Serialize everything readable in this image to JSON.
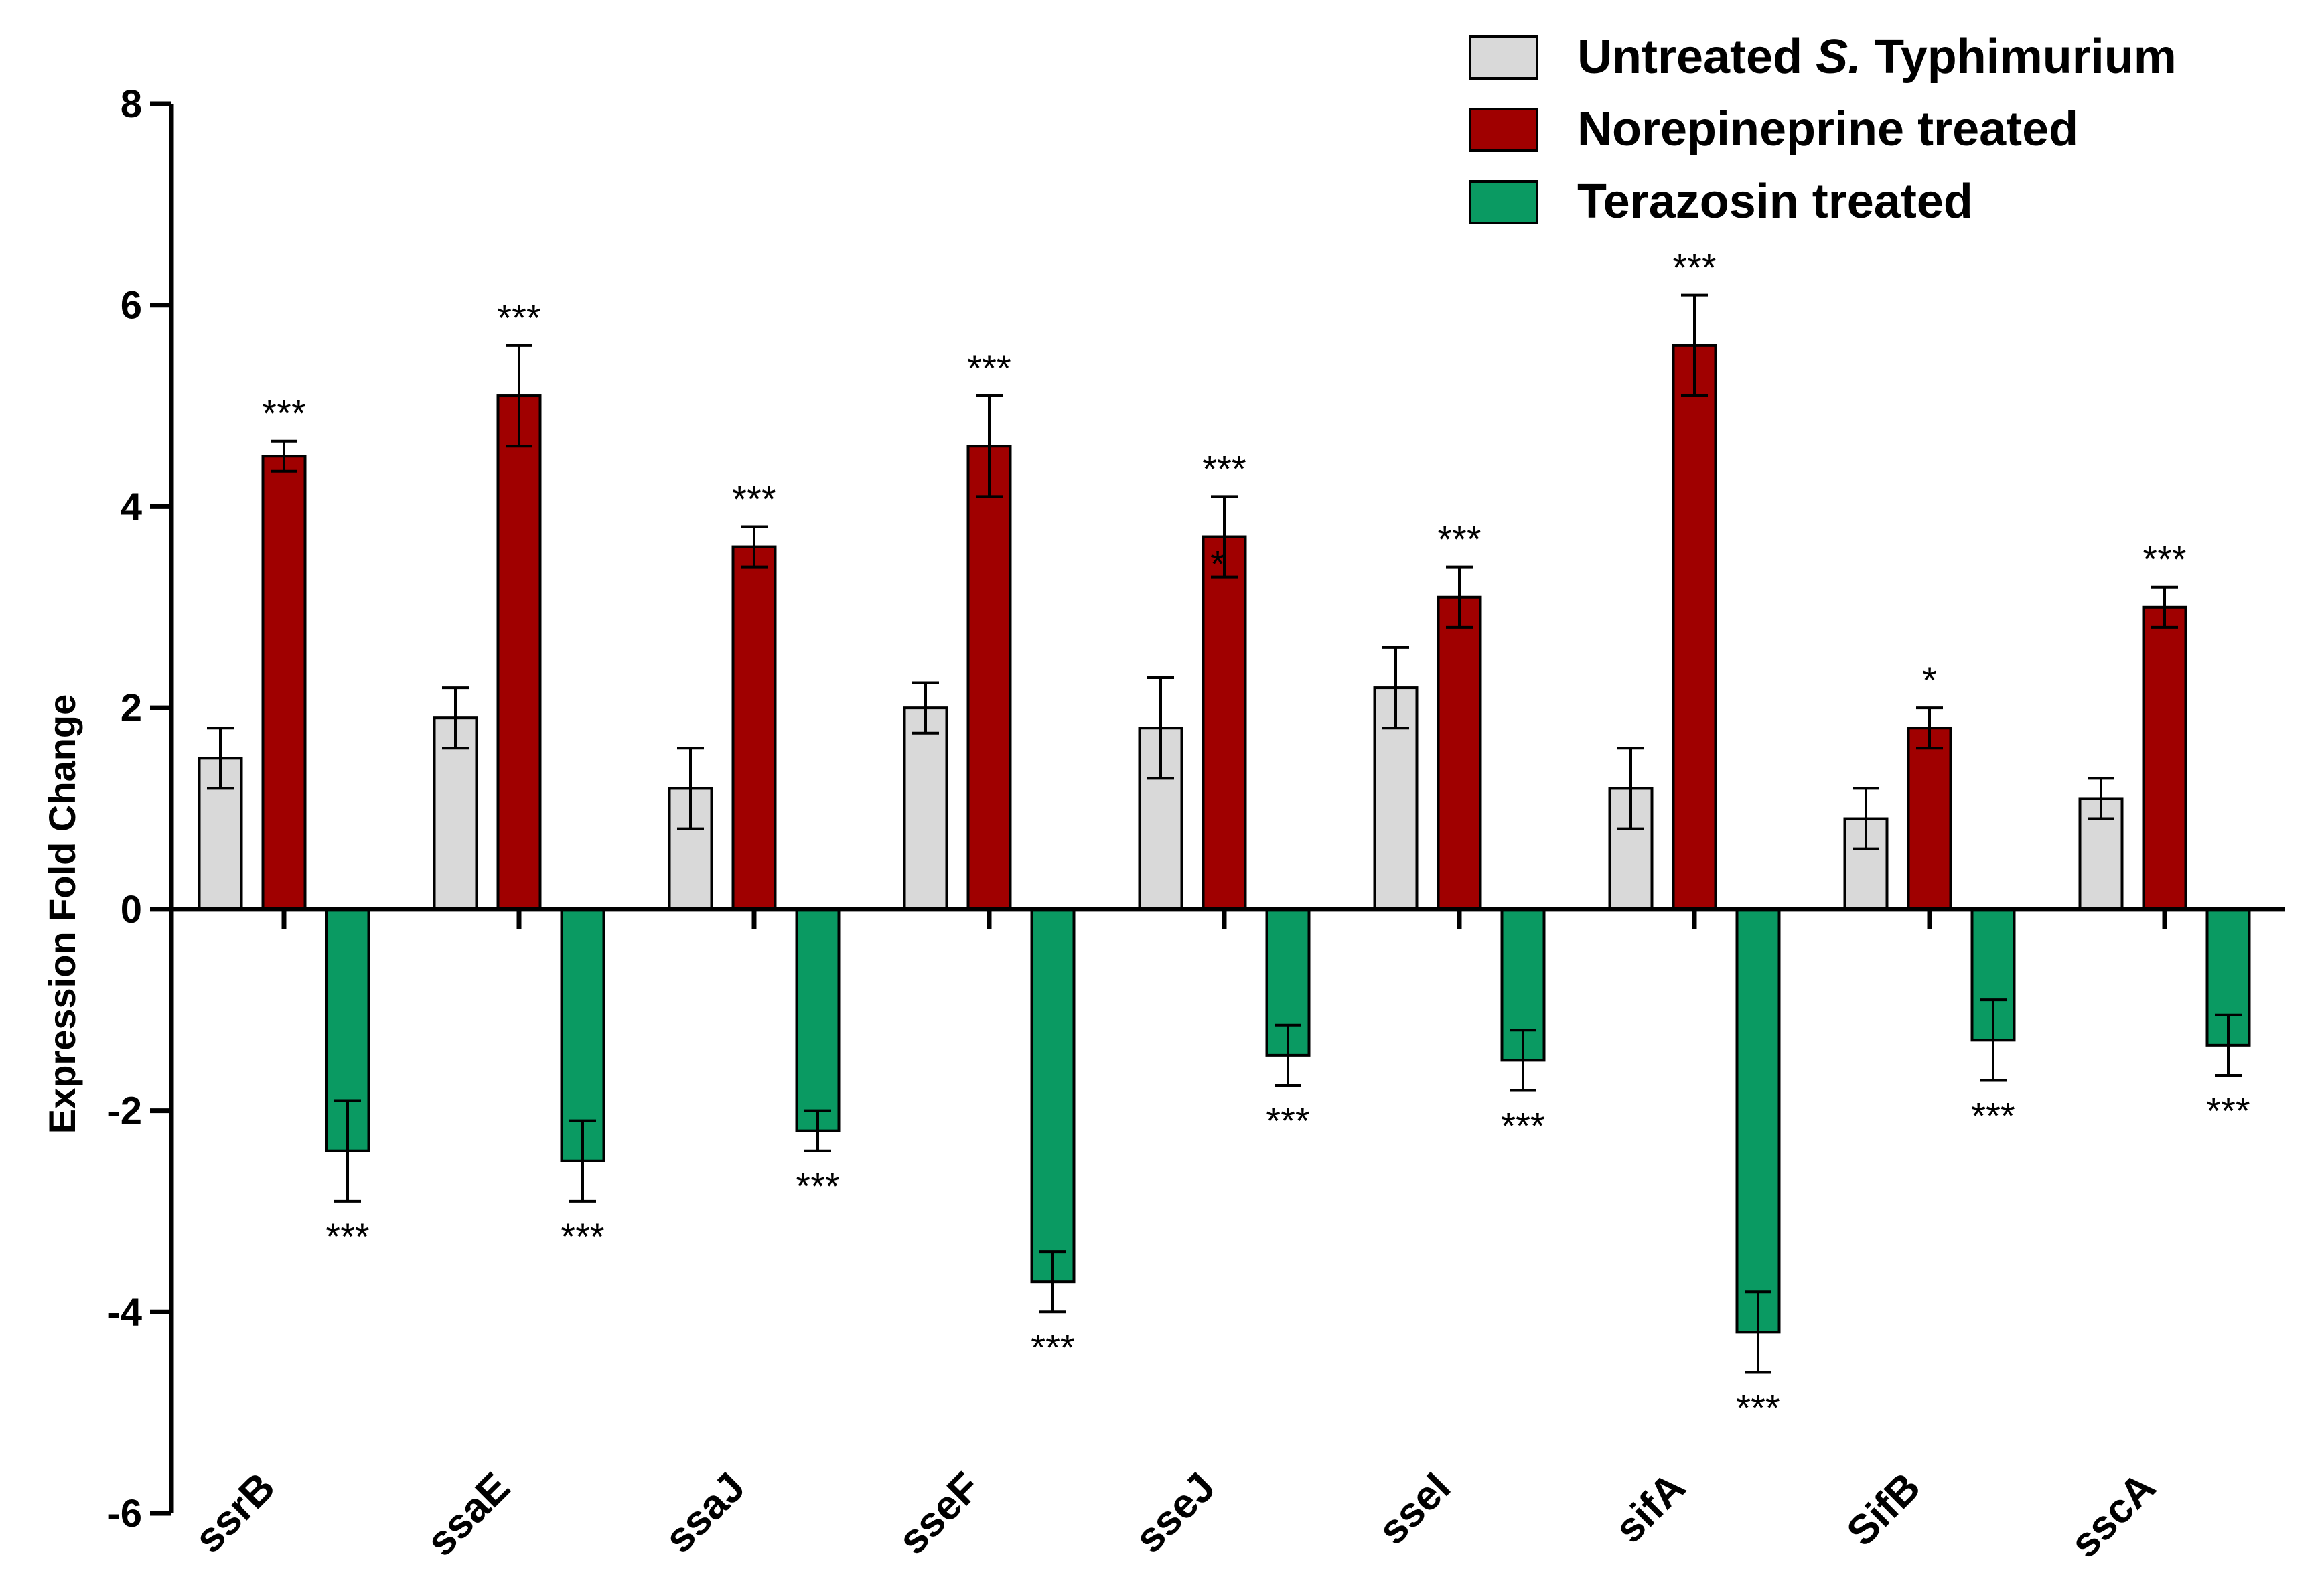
{
  "chart_data": {
    "type": "bar",
    "title": "",
    "xlabel": "",
    "ylabel": "Expression Fold Change",
    "ylim": [
      -6,
      8
    ],
    "yticks": [
      -6,
      -4,
      -2,
      0,
      2,
      4,
      6,
      8
    ],
    "grid": false,
    "legend_position": "top-right",
    "categories": [
      "ssrB",
      "ssaE",
      "ssaJ",
      "sseF",
      "sseJ",
      "sseI",
      "sifA",
      "SifB",
      "sscA"
    ],
    "series": [
      {
        "name": "Untreated S. Typhimurium",
        "legend_prefix": "Untreated ",
        "legend_italic": "S.",
        "legend_suffix": " Typhimurium",
        "color": "#d9d9d9",
        "values": [
          1.5,
          1.9,
          1.2,
          2.0,
          1.8,
          2.2,
          1.2,
          0.9,
          1.1
        ],
        "errors": [
          0.3,
          0.3,
          0.4,
          0.25,
          0.5,
          0.4,
          0.4,
          0.3,
          0.2
        ],
        "significance": [
          "",
          "",
          "",
          "",
          "",
          "",
          "",
          "",
          ""
        ]
      },
      {
        "name": "Norepineprine treated",
        "legend_prefix": "Norepineprine treated",
        "legend_italic": "",
        "legend_suffix": "",
        "color": "#a00000",
        "values": [
          4.5,
          5.1,
          3.6,
          4.6,
          3.7,
          3.1,
          5.6,
          1.8,
          3.0
        ],
        "errors": [
          0.15,
          0.5,
          0.2,
          0.5,
          0.4,
          0.3,
          0.5,
          0.2,
          0.2
        ],
        "significance": [
          "***",
          "***",
          "***",
          "***",
          "***",
          "***",
          "***",
          "*",
          "***"
        ]
      },
      {
        "name": "Terazosin treated",
        "legend_prefix": "Terazosin treated",
        "legend_italic": "",
        "legend_suffix": "",
        "color": "#0a9a62",
        "values": [
          -2.4,
          -2.5,
          -2.2,
          -3.7,
          -1.45,
          -1.5,
          -4.2,
          -1.3,
          -1.35
        ],
        "errors": [
          0.5,
          0.4,
          0.2,
          0.3,
          0.3,
          0.3,
          0.4,
          0.4,
          0.3
        ],
        "significance": [
          "***",
          "***",
          "***",
          "***",
          "***",
          "***",
          "***",
          "***",
          "***"
        ]
      }
    ],
    "extra_annotations": [
      {
        "category": "sseJ",
        "series": "Norepineprine treated",
        "text": "*"
      }
    ]
  }
}
